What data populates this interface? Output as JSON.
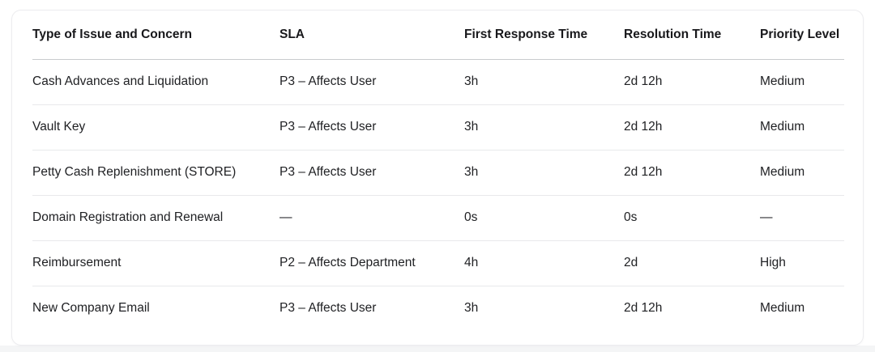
{
  "table": {
    "columns": [
      "Type of Issue and Concern",
      "SLA",
      "First Response Time",
      "Resolution Time",
      "Priority Level"
    ],
    "rows": [
      [
        "Cash Advances and Liquidation",
        "P3 – Affects User",
        "3h",
        "2d 12h",
        "Medium"
      ],
      [
        "Vault Key",
        "P3 – Affects User",
        "3h",
        "2d 12h",
        "Medium"
      ],
      [
        "Petty Cash Replenishment (STORE)",
        "P3 – Affects User",
        "3h",
        "2d 12h",
        "Medium"
      ],
      [
        "Domain Registration and Renewal",
        "—",
        "0s",
        "0s",
        "—"
      ],
      [
        "Reimbursement",
        "P2 – Affects Department",
        "4h",
        "2d",
        "High"
      ],
      [
        "New Company Email",
        "P3 – Affects User",
        "3h",
        "2d 12h",
        "Medium"
      ]
    ]
  },
  "colors": {
    "card_background": "#ffffff",
    "card_border": "#ececef",
    "header_divider": "#c9cbce",
    "row_divider": "#e8e9eb",
    "header_text": "#18181b",
    "cell_text": "#202124",
    "page_bottom_strip": "#f4f5f6"
  }
}
